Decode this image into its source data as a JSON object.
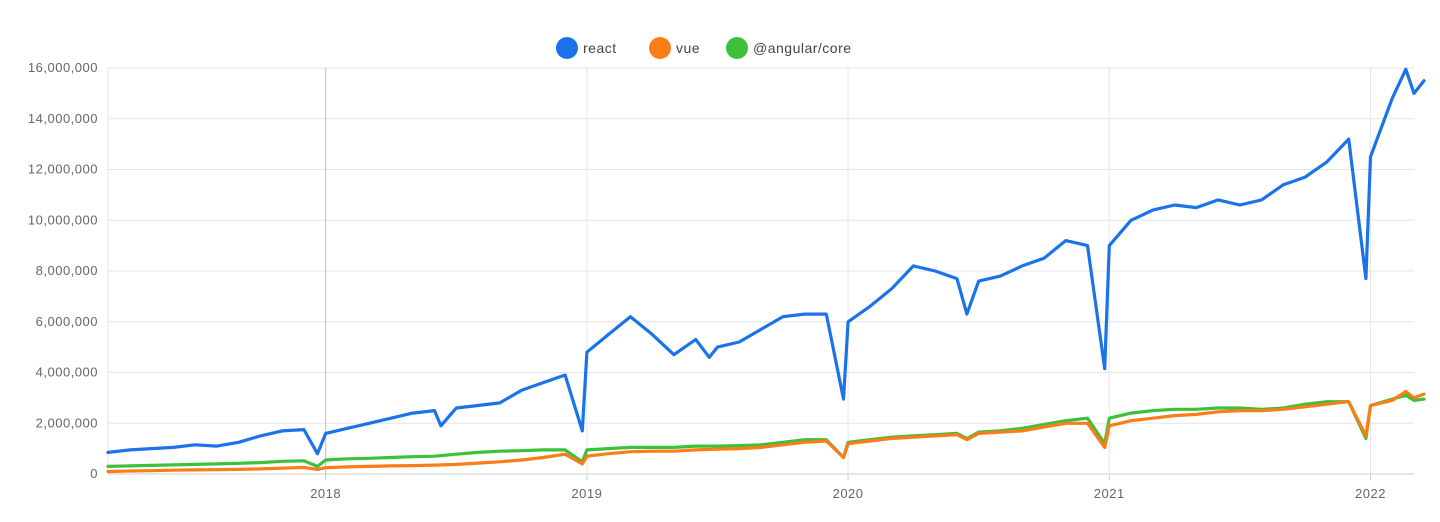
{
  "chart_data": {
    "type": "line",
    "title": "",
    "xlabel": "",
    "ylabel": "",
    "ylim": [
      0,
      16000000
    ],
    "xlim": [
      "2017-03",
      "2022-03"
    ],
    "yticks": [
      0,
      2000000,
      4000000,
      6000000,
      8000000,
      10000000,
      12000000,
      14000000,
      16000000
    ],
    "ytick_labels": [
      "0",
      "2,000,000",
      "4,000,000",
      "6,000,000",
      "8,000,000",
      "10,000,000",
      "12,000,000",
      "14,000,000",
      "16,000,000"
    ],
    "xticks": [
      "2018-01",
      "2019-01",
      "2020-01",
      "2021-01",
      "2022-01"
    ],
    "xtick_labels": [
      "2018",
      "2019",
      "2020",
      "2021",
      "2022"
    ],
    "grid": true,
    "legend_position": "top-center",
    "series": [
      {
        "name": "react",
        "color": "#1a73e8",
        "points": [
          [
            "2017-03",
            850000
          ],
          [
            "2017-04",
            950000
          ],
          [
            "2017-05",
            1000000
          ],
          [
            "2017-06",
            1050000
          ],
          [
            "2017-07",
            1150000
          ],
          [
            "2017-08",
            1100000
          ],
          [
            "2017-09",
            1250000
          ],
          [
            "2017-10",
            1500000
          ],
          [
            "2017-11",
            1700000
          ],
          [
            "2017-12",
            1750000
          ],
          [
            "2017-12-20",
            800000
          ],
          [
            "2018-01",
            1600000
          ],
          [
            "2018-02",
            1800000
          ],
          [
            "2018-03",
            2000000
          ],
          [
            "2018-04",
            2200000
          ],
          [
            "2018-05",
            2400000
          ],
          [
            "2018-06",
            2500000
          ],
          [
            "2018-06-10",
            1900000
          ],
          [
            "2018-07",
            2600000
          ],
          [
            "2018-08",
            2700000
          ],
          [
            "2018-09",
            2800000
          ],
          [
            "2018-10",
            3300000
          ],
          [
            "2018-11",
            3600000
          ],
          [
            "2018-12",
            3900000
          ],
          [
            "2018-12-25",
            1700000
          ],
          [
            "2019-01",
            4800000
          ],
          [
            "2019-02",
            5500000
          ],
          [
            "2019-03",
            6200000
          ],
          [
            "2019-04",
            5500000
          ],
          [
            "2019-05",
            4700000
          ],
          [
            "2019-06",
            5300000
          ],
          [
            "2019-06-20",
            4600000
          ],
          [
            "2019-07",
            5000000
          ],
          [
            "2019-08",
            5200000
          ],
          [
            "2019-09",
            5700000
          ],
          [
            "2019-10",
            6200000
          ],
          [
            "2019-11",
            6300000
          ],
          [
            "2019-12",
            6300000
          ],
          [
            "2019-12-25",
            2950000
          ],
          [
            "2020-01",
            6000000
          ],
          [
            "2020-02",
            6600000
          ],
          [
            "2020-03",
            7300000
          ],
          [
            "2020-04",
            8200000
          ],
          [
            "2020-05",
            8000000
          ],
          [
            "2020-06",
            7700000
          ],
          [
            "2020-06-15",
            6300000
          ],
          [
            "2020-07",
            7600000
          ],
          [
            "2020-08",
            7800000
          ],
          [
            "2020-09",
            8200000
          ],
          [
            "2020-10",
            8500000
          ],
          [
            "2020-11",
            9200000
          ],
          [
            "2020-12",
            9000000
          ],
          [
            "2020-12-25",
            4150000
          ],
          [
            "2021-01",
            9000000
          ],
          [
            "2021-02",
            10000000
          ],
          [
            "2021-03",
            10400000
          ],
          [
            "2021-04",
            10600000
          ],
          [
            "2021-05",
            10500000
          ],
          [
            "2021-06",
            10800000
          ],
          [
            "2021-07",
            10600000
          ],
          [
            "2021-08",
            10800000
          ],
          [
            "2021-09",
            11400000
          ],
          [
            "2021-10",
            11700000
          ],
          [
            "2021-11",
            12300000
          ],
          [
            "2021-12",
            13200000
          ],
          [
            "2021-12-25",
            7700000
          ],
          [
            "2022-01",
            12500000
          ],
          [
            "2022-02",
            14800000
          ],
          [
            "2022-02-20",
            15950000
          ],
          [
            "2022-03",
            15000000
          ],
          [
            "2022-03-15",
            15500000
          ]
        ]
      },
      {
        "name": "vue",
        "color": "#fa7d19",
        "points": [
          [
            "2017-03",
            100000
          ],
          [
            "2017-04",
            120000
          ],
          [
            "2017-05",
            130000
          ],
          [
            "2017-06",
            150000
          ],
          [
            "2017-07",
            160000
          ],
          [
            "2017-08",
            170000
          ],
          [
            "2017-09",
            180000
          ],
          [
            "2017-10",
            200000
          ],
          [
            "2017-11",
            230000
          ],
          [
            "2017-12",
            260000
          ],
          [
            "2017-12-20",
            180000
          ],
          [
            "2018-01",
            250000
          ],
          [
            "2018-02",
            280000
          ],
          [
            "2018-03",
            300000
          ],
          [
            "2018-04",
            320000
          ],
          [
            "2018-05",
            330000
          ],
          [
            "2018-06",
            350000
          ],
          [
            "2018-07",
            380000
          ],
          [
            "2018-08",
            430000
          ],
          [
            "2018-09",
            480000
          ],
          [
            "2018-10",
            550000
          ],
          [
            "2018-11",
            650000
          ],
          [
            "2018-12",
            780000
          ],
          [
            "2018-12-25",
            400000
          ],
          [
            "2019-01",
            700000
          ],
          [
            "2019-02",
            800000
          ],
          [
            "2019-03",
            880000
          ],
          [
            "2019-04",
            900000
          ],
          [
            "2019-05",
            900000
          ],
          [
            "2019-06",
            950000
          ],
          [
            "2019-07",
            980000
          ],
          [
            "2019-08",
            1000000
          ],
          [
            "2019-09",
            1050000
          ],
          [
            "2019-10",
            1150000
          ],
          [
            "2019-11",
            1250000
          ],
          [
            "2019-12",
            1300000
          ],
          [
            "2019-12-25",
            650000
          ],
          [
            "2020-01",
            1200000
          ],
          [
            "2020-02",
            1300000
          ],
          [
            "2020-03",
            1400000
          ],
          [
            "2020-04",
            1450000
          ],
          [
            "2020-05",
            1500000
          ],
          [
            "2020-06",
            1550000
          ],
          [
            "2020-06-15",
            1350000
          ],
          [
            "2020-07",
            1600000
          ],
          [
            "2020-08",
            1650000
          ],
          [
            "2020-09",
            1700000
          ],
          [
            "2020-10",
            1850000
          ],
          [
            "2020-11",
            2000000
          ],
          [
            "2020-12",
            2000000
          ],
          [
            "2020-12-25",
            1050000
          ],
          [
            "2021-01",
            1900000
          ],
          [
            "2021-02",
            2100000
          ],
          [
            "2021-03",
            2200000
          ],
          [
            "2021-04",
            2300000
          ],
          [
            "2021-05",
            2350000
          ],
          [
            "2021-06",
            2450000
          ],
          [
            "2021-07",
            2500000
          ],
          [
            "2021-08",
            2500000
          ],
          [
            "2021-09",
            2550000
          ],
          [
            "2021-10",
            2650000
          ],
          [
            "2021-11",
            2750000
          ],
          [
            "2021-12",
            2850000
          ],
          [
            "2021-12-25",
            1500000
          ],
          [
            "2022-01",
            2700000
          ],
          [
            "2022-02",
            2900000
          ],
          [
            "2022-02-20",
            3250000
          ],
          [
            "2022-03",
            3000000
          ],
          [
            "2022-03-15",
            3150000
          ]
        ]
      },
      {
        "name": "@angular/core",
        "color": "#3cc13b",
        "points": [
          [
            "2017-03",
            300000
          ],
          [
            "2017-04",
            320000
          ],
          [
            "2017-05",
            340000
          ],
          [
            "2017-06",
            360000
          ],
          [
            "2017-07",
            380000
          ],
          [
            "2017-08",
            400000
          ],
          [
            "2017-09",
            420000
          ],
          [
            "2017-10",
            450000
          ],
          [
            "2017-11",
            500000
          ],
          [
            "2017-12",
            520000
          ],
          [
            "2017-12-20",
            300000
          ],
          [
            "2018-01",
            550000
          ],
          [
            "2018-02",
            600000
          ],
          [
            "2018-03",
            620000
          ],
          [
            "2018-04",
            650000
          ],
          [
            "2018-05",
            680000
          ],
          [
            "2018-06",
            700000
          ],
          [
            "2018-07",
            780000
          ],
          [
            "2018-08",
            850000
          ],
          [
            "2018-09",
            900000
          ],
          [
            "2018-10",
            920000
          ],
          [
            "2018-11",
            950000
          ],
          [
            "2018-12",
            950000
          ],
          [
            "2018-12-25",
            480000
          ],
          [
            "2019-01",
            950000
          ],
          [
            "2019-02",
            1000000
          ],
          [
            "2019-03",
            1050000
          ],
          [
            "2019-04",
            1050000
          ],
          [
            "2019-05",
            1050000
          ],
          [
            "2019-06",
            1100000
          ],
          [
            "2019-07",
            1100000
          ],
          [
            "2019-08",
            1120000
          ],
          [
            "2019-09",
            1150000
          ],
          [
            "2019-10",
            1250000
          ],
          [
            "2019-11",
            1350000
          ],
          [
            "2019-12",
            1350000
          ],
          [
            "2019-12-25",
            650000
          ],
          [
            "2020-01",
            1250000
          ],
          [
            "2020-02",
            1350000
          ],
          [
            "2020-03",
            1450000
          ],
          [
            "2020-04",
            1500000
          ],
          [
            "2020-05",
            1550000
          ],
          [
            "2020-06",
            1600000
          ],
          [
            "2020-06-15",
            1400000
          ],
          [
            "2020-07",
            1650000
          ],
          [
            "2020-08",
            1700000
          ],
          [
            "2020-09",
            1800000
          ],
          [
            "2020-10",
            1950000
          ],
          [
            "2020-11",
            2100000
          ],
          [
            "2020-12",
            2200000
          ],
          [
            "2020-12-25",
            1200000
          ],
          [
            "2021-01",
            2200000
          ],
          [
            "2021-02",
            2400000
          ],
          [
            "2021-03",
            2500000
          ],
          [
            "2021-04",
            2550000
          ],
          [
            "2021-05",
            2550000
          ],
          [
            "2021-06",
            2600000
          ],
          [
            "2021-07",
            2600000
          ],
          [
            "2021-08",
            2550000
          ],
          [
            "2021-09",
            2600000
          ],
          [
            "2021-10",
            2750000
          ],
          [
            "2021-11",
            2850000
          ],
          [
            "2021-12",
            2850000
          ],
          [
            "2021-12-25",
            1400000
          ],
          [
            "2022-01",
            2700000
          ],
          [
            "2022-02",
            2950000
          ],
          [
            "2022-02-20",
            3100000
          ],
          [
            "2022-03",
            2900000
          ],
          [
            "2022-03-15",
            2950000
          ]
        ]
      }
    ]
  }
}
